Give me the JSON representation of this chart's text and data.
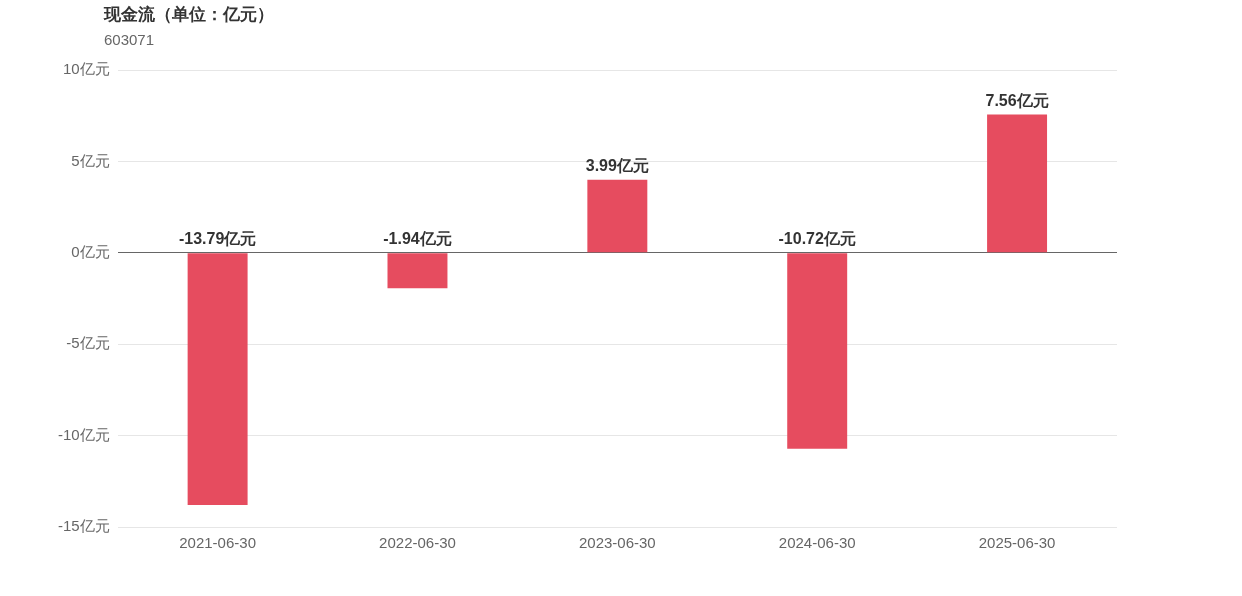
{
  "chart_data": {
    "type": "bar",
    "title": "现金流（单位：亿元）",
    "subtitle": "603071",
    "categories": [
      "2021-06-30",
      "2022-06-30",
      "2023-06-30",
      "2024-06-30",
      "2025-06-30"
    ],
    "values": [
      -13.79,
      -1.94,
      3.99,
      -10.72,
      7.56
    ],
    "value_labels": [
      "-13.79亿元",
      "-1.94亿元",
      "3.99亿元",
      "-10.72亿元",
      "7.56亿元"
    ],
    "color": "#e64c5f",
    "ylim": [
      -15,
      10
    ],
    "yticks": [
      {
        "value": -15,
        "label": "-15亿元"
      },
      {
        "value": -10,
        "label": "-10亿元"
      },
      {
        "value": -5,
        "label": "-5亿元"
      },
      {
        "value": 0,
        "label": "0亿元"
      },
      {
        "value": 5,
        "label": "5亿元"
      },
      {
        "value": 10,
        "label": "10亿元"
      }
    ],
    "grid": "y",
    "legend": false
  }
}
